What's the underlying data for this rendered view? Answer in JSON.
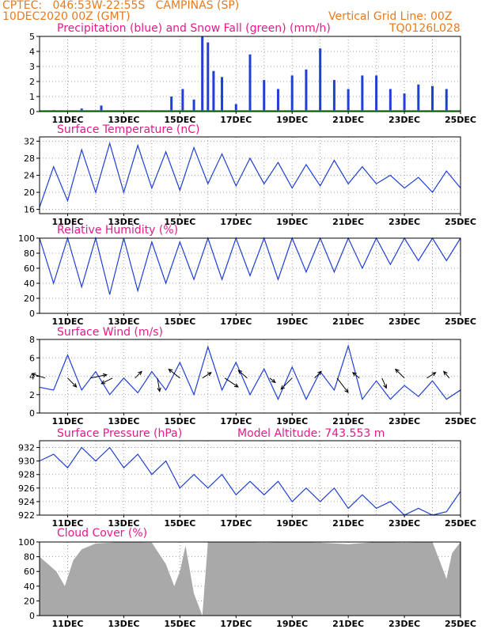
{
  "header": {
    "line1_left": "CPTEC:   046:53W-22:55S   CAMPINAS (SP)",
    "line2_left": "10DEC2020 00Z (GMT)",
    "line2_right": "Vertical Grid Line: 00Z",
    "line3_right": "TQ0126L028"
  },
  "colors": {
    "header": "#e87a1e",
    "title": "#e8198a",
    "line": "#1f3fd6",
    "snow": "#19a319",
    "cloud": "#a9a9a9",
    "grid": "#888888"
  },
  "x_labels": [
    "11DEC",
    "13DEC",
    "15DEC",
    "17DEC",
    "19DEC",
    "21DEC",
    "23DEC",
    "25DEC"
  ],
  "chart_data": [
    {
      "id": "precip",
      "type": "bar",
      "title": "Precipitation (blue) and Snow Fall (green) (mm/h)",
      "ylim": [
        0,
        5
      ],
      "yticks": [
        "0",
        "1",
        "2",
        "3",
        "4",
        "5"
      ],
      "xlim_days": [
        10,
        25
      ],
      "series": [
        {
          "name": "Precipitation",
          "x": [
            10.5,
            11.5,
            12.2,
            14.7,
            15.1,
            15.5,
            15.8,
            16.0,
            16.2,
            16.5,
            17.0,
            17.5,
            18.0,
            18.5,
            19.0,
            19.5,
            20.0,
            20.5,
            21.0,
            21.5,
            22.0,
            22.5,
            23.0,
            23.5,
            24.0,
            24.5
          ],
          "values": [
            0.1,
            0.2,
            0.4,
            1.0,
            1.5,
            0.8,
            5.0,
            4.6,
            2.7,
            2.3,
            0.5,
            3.8,
            2.1,
            1.5,
            2.4,
            2.8,
            4.2,
            2.1,
            1.5,
            2.4,
            2.4,
            1.5,
            1.2,
            1.8,
            1.7,
            1.5
          ]
        }
      ]
    },
    {
      "id": "temp",
      "type": "line",
      "title": "Surface Temperature (nC)",
      "ylim": [
        15,
        33
      ],
      "yticks": [
        "16",
        "20",
        "24",
        "28",
        "32"
      ],
      "xlim_days": [
        10,
        25
      ],
      "series": [
        {
          "name": "",
          "x": [
            10.0,
            10.5,
            11.0,
            11.5,
            12.0,
            12.5,
            13.0,
            13.5,
            14.0,
            14.5,
            15.0,
            15.5,
            16.0,
            16.5,
            17.0,
            17.5,
            18.0,
            18.5,
            19.0,
            19.5,
            20.0,
            20.5,
            21.0,
            21.5,
            22.0,
            22.5,
            23.0,
            23.5,
            24.0,
            24.5,
            25.0
          ],
          "values": [
            16.5,
            26.0,
            18.0,
            30.0,
            20.0,
            31.5,
            20.0,
            31.0,
            21.0,
            29.5,
            20.5,
            30.5,
            22.0,
            29.0,
            21.5,
            28.0,
            22.0,
            27.0,
            21.0,
            26.5,
            21.5,
            27.5,
            22.0,
            26.0,
            22.0,
            24.0,
            21.0,
            23.5,
            20.0,
            25.0,
            21.0
          ]
        }
      ]
    },
    {
      "id": "rh",
      "type": "line",
      "title": "Relative Humidity (%)",
      "ylim": [
        0,
        100
      ],
      "yticks": [
        "0",
        "20",
        "40",
        "60",
        "80",
        "100"
      ],
      "xlim_days": [
        10,
        25
      ],
      "series": [
        {
          "name": "",
          "x": [
            10.0,
            10.5,
            11.0,
            11.5,
            12.0,
            12.5,
            13.0,
            13.5,
            14.0,
            14.5,
            15.0,
            15.5,
            16.0,
            16.5,
            17.0,
            17.5,
            18.0,
            18.5,
            19.0,
            19.5,
            20.0,
            20.5,
            21.0,
            21.5,
            22.0,
            22.5,
            23.0,
            23.5,
            24.0,
            24.5,
            25.0
          ],
          "values": [
            100,
            40,
            100,
            35,
            100,
            25,
            100,
            30,
            95,
            40,
            95,
            45,
            100,
            45,
            100,
            50,
            100,
            45,
            100,
            55,
            100,
            55,
            100,
            60,
            100,
            65,
            100,
            70,
            100,
            70,
            100
          ]
        }
      ]
    },
    {
      "id": "wind",
      "type": "line",
      "title": "Surface Wind (m/s)",
      "ylim": [
        0,
        8
      ],
      "yticks": [
        "0",
        "2",
        "4",
        "6",
        "8"
      ],
      "xlim_days": [
        10,
        25
      ],
      "series": [
        {
          "name": "",
          "x": [
            10.0,
            10.5,
            11.0,
            11.5,
            12.0,
            12.5,
            13.0,
            13.5,
            14.0,
            14.5,
            15.0,
            15.5,
            16.0,
            16.5,
            17.0,
            17.5,
            18.0,
            18.5,
            19.0,
            19.5,
            20.0,
            20.5,
            21.0,
            21.5,
            22.0,
            22.5,
            23.0,
            23.5,
            24.0,
            24.5,
            25.0
          ],
          "values": [
            2.8,
            2.5,
            6.3,
            2.5,
            4.5,
            2.0,
            3.8,
            2.2,
            4.5,
            2.5,
            5.5,
            2.0,
            7.2,
            2.5,
            5.5,
            2.0,
            4.8,
            1.5,
            5.0,
            1.5,
            4.5,
            2.5,
            7.3,
            1.5,
            3.5,
            1.5,
            3.0,
            1.8,
            3.5,
            1.5,
            2.5
          ]
        },
        {
          "name": "",
          "type": "vectors",
          "x": [
            10.2,
            11.0,
            11.8,
            12.6,
            13.4,
            14.2,
            15.0,
            15.8,
            16.6,
            17.4,
            18.2,
            19.0,
            19.8,
            20.6,
            21.4,
            22.2,
            23.0,
            23.8,
            24.6
          ],
          "u": [
            -1.2,
            0.8,
            1.5,
            -1.0,
            0.6,
            0.2,
            -1.0,
            0.8,
            1.2,
            -0.8,
            0.5,
            -1.0,
            0.6,
            1.0,
            -0.6,
            0.4,
            -0.8,
            0.8,
            -0.5
          ],
          "v": [
            0.4,
            -0.8,
            0.3,
            -0.5,
            0.6,
            -1.2,
            0.8,
            0.5,
            -0.8,
            0.7,
            -0.4,
            -1.0,
            0.6,
            -1.3,
            0.5,
            -0.9,
            0.8,
            0.5,
            0.6
          ]
        }
      ]
    },
    {
      "id": "pressure",
      "type": "line",
      "title": "Surface Pressure (hPa)",
      "subtitle": "Model Altitude: 743.553 m",
      "ylim": [
        922,
        933
      ],
      "yticks": [
        "922",
        "924",
        "926",
        "928",
        "930",
        "932"
      ],
      "xlim_days": [
        10,
        25
      ],
      "series": [
        {
          "name": "",
          "x": [
            10.0,
            10.5,
            11.0,
            11.5,
            12.0,
            12.5,
            13.0,
            13.5,
            14.0,
            14.5,
            15.0,
            15.5,
            16.0,
            16.5,
            17.0,
            17.5,
            18.0,
            18.5,
            19.0,
            19.5,
            20.0,
            20.5,
            21.0,
            21.5,
            22.0,
            22.5,
            23.0,
            23.5,
            24.0,
            24.5,
            25.0
          ],
          "values": [
            930,
            931,
            929,
            932,
            930,
            932,
            929,
            931,
            928,
            930,
            926,
            928,
            926,
            928,
            925,
            927,
            925,
            927,
            924,
            926,
            924,
            926,
            923,
            925,
            923,
            924,
            922,
            923,
            922,
            922.5,
            925.5
          ]
        }
      ]
    },
    {
      "id": "cloud",
      "type": "area",
      "title": "Cloud Cover (%)",
      "ylim": [
        0,
        100
      ],
      "yticks": [
        "0",
        "20",
        "40",
        "60",
        "80",
        "100"
      ],
      "xlim_days": [
        10,
        25
      ],
      "series": [
        {
          "name": "",
          "x": [
            10.0,
            10.3,
            10.6,
            10.9,
            11.2,
            11.5,
            12.0,
            13.0,
            14.0,
            14.5,
            14.8,
            15.0,
            15.2,
            15.5,
            15.8,
            16.0,
            17.0,
            18.0,
            19.0,
            20.0,
            21.0,
            22.0,
            23.0,
            24.0,
            24.5,
            24.7,
            25.0
          ],
          "values": [
            80,
            70,
            60,
            40,
            75,
            90,
            98,
            100,
            99,
            70,
            40,
            60,
            95,
            30,
            0,
            100,
            100,
            99,
            100,
            99,
            97,
            100,
            99,
            100,
            50,
            85,
            100
          ]
        }
      ]
    }
  ]
}
